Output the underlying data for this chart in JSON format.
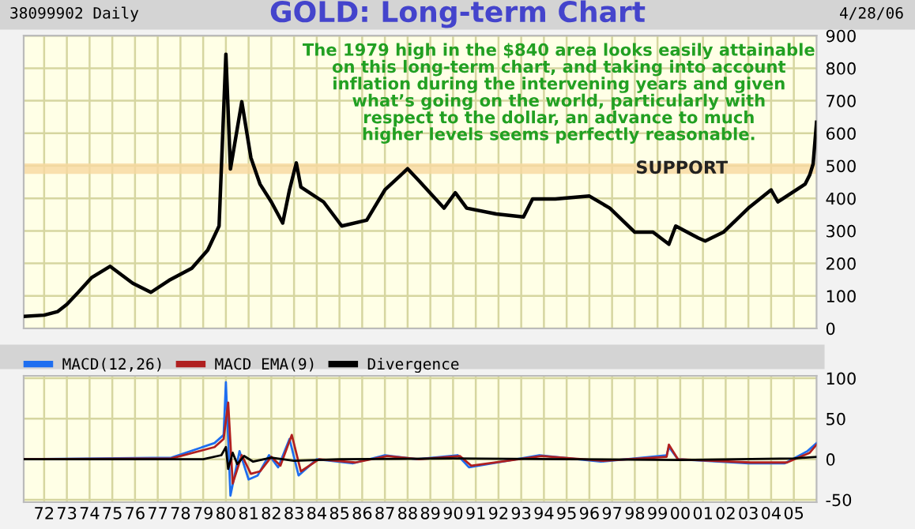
{
  "chart_data": [
    {
      "type": "line",
      "title": "GOLD: Long-term Chart",
      "annotations": [
        "38099902 Daily",
        "4/28/06",
        "The 1979 high in the $840 area looks easily attainable\non this long-term chart, and taking into account\ninflation during the intervening years and given\nwhat’s going on the world, particularly with\nrespect to the dollar, an advance to much\nhigher levels seems perfectly reasonable."
      ],
      "series": [
        {
          "color": "#000000",
          "x": [
            1971.1,
            1972.0,
            1972.6,
            1973.0,
            1973.5,
            1974.1,
            1974.9,
            1975.9,
            1976.7,
            1977.5,
            1978.5,
            1979.2,
            1979.7,
            1980.0,
            1980.2,
            1980.7,
            1981.1,
            1981.5,
            1982.0,
            1982.5,
            1982.8,
            1983.1,
            1983.3,
            1984.3,
            1985.1,
            1986.2,
            1987.0,
            1988.0,
            1988.5,
            1989.6,
            1990.1,
            1990.6,
            1991.9,
            1993.1,
            1993.5,
            1994.5,
            1996.0,
            1996.9,
            1998.0,
            1998.8,
            1999.5,
            1999.8,
            2000.8,
            2001.1,
            2001.9,
            2003.0,
            2004.0,
            2004.3,
            2005.5,
            2005.7,
            2005.85,
            2006.0
          ],
          "values": [
            37,
            41,
            52,
            74,
            111,
            157,
            191,
            139,
            111,
            148,
            185,
            241,
            315,
            843,
            490,
            697,
            525,
            444,
            389,
            324,
            426,
            509,
            435,
            389,
            315,
            333,
            426,
            491,
            454,
            370,
            417,
            370,
            352,
            343,
            398,
            398,
            407,
            370,
            296,
            296,
            259,
            315,
            278,
            269,
            296,
            370,
            426,
            389,
            444,
            472,
            506,
            634
          ]
        }
      ],
      "xlim": [
        1971.1,
        2006.0
      ],
      "xticks": [
        {
          "value": 1972,
          "label": null
        },
        {
          "value": 1973,
          "label": null
        },
        {
          "value": 1974,
          "label": null
        },
        {
          "value": 1975,
          "label": null
        },
        {
          "value": 1976,
          "label": null
        },
        {
          "value": 1977,
          "label": null
        },
        {
          "value": 1978,
          "label": null
        },
        {
          "value": 1979,
          "label": null
        },
        {
          "value": 1980,
          "label": null
        },
        {
          "value": 1981,
          "label": null
        },
        {
          "value": 1982,
          "label": null
        },
        {
          "value": 1983,
          "label": null
        },
        {
          "value": 1984,
          "label": null
        },
        {
          "value": 1985,
          "label": null
        },
        {
          "value": 1986,
          "label": null
        },
        {
          "value": 1987,
          "label": null
        },
        {
          "value": 1988,
          "label": null
        },
        {
          "value": 1989,
          "label": null
        },
        {
          "value": 1990,
          "label": null
        },
        {
          "value": 1991,
          "label": null
        },
        {
          "value": 1992,
          "label": null
        },
        {
          "value": 1993,
          "label": null
        },
        {
          "value": 1994,
          "label": null
        },
        {
          "value": 1995,
          "label": null
        },
        {
          "value": 1996,
          "label": null
        },
        {
          "value": 1997,
          "label": null
        },
        {
          "value": 1998,
          "label": null
        },
        {
          "value": 1999,
          "label": null
        },
        {
          "value": 2000,
          "label": null
        },
        {
          "value": 2001,
          "label": null
        },
        {
          "value": 2002,
          "label": null
        },
        {
          "value": 2003,
          "label": null
        },
        {
          "value": 2004,
          "label": null
        },
        {
          "value": 2005,
          "label": null
        }
      ],
      "ylim": [
        0,
        900
      ],
      "yticks": [
        0,
        100,
        200,
        300,
        400,
        500,
        600,
        700,
        800,
        900
      ],
      "bands": [
        {
          "axis": "y",
          "from": 475,
          "to": 507,
          "label": "SUPPORT",
          "color": "#f8d8a0"
        }
      ],
      "grid": true,
      "tick_labels": "y"
    },
    {
      "type": "line",
      "series": [
        {
          "name": "MACD(12,26)",
          "color": "#1e6ef0",
          "x": [
            1971.1,
            1977.6,
            1979.5,
            1979.9,
            1980.0,
            1980.2,
            1980.6,
            1981.0,
            1981.4,
            1981.9,
            1982.3,
            1982.8,
            1983.2,
            1984.0,
            1985.6,
            1987.0,
            1988.4,
            1990.2,
            1990.7,
            1993.8,
            1996.5,
            1999.4,
            1999.5,
            1999.9,
            2003.0,
            2004.6,
            2005.6,
            2006.0
          ],
          "values": [
            0,
            2,
            20,
            30,
            95,
            -45,
            10,
            -25,
            -20,
            5,
            -10,
            25,
            -20,
            0,
            -5,
            5,
            0,
            5,
            -10,
            5,
            -3,
            5,
            15,
            0,
            -5,
            -5,
            10,
            20
          ]
        },
        {
          "name": "MACD EMA(9)",
          "color": "#b02020",
          "x": [
            1971.1,
            1977.6,
            1979.5,
            1979.9,
            1980.1,
            1980.3,
            1980.7,
            1981.1,
            1981.5,
            1982.0,
            1982.4,
            1982.9,
            1983.3,
            1984.1,
            1985.7,
            1987.1,
            1988.5,
            1990.3,
            1990.8,
            1993.9,
            1996.6,
            1999.4,
            1999.5,
            1999.9,
            2003.1,
            2004.7,
            2005.7,
            2006.0
          ],
          "values": [
            0,
            1,
            15,
            25,
            70,
            -30,
            5,
            -18,
            -15,
            3,
            -8,
            30,
            -15,
            0,
            -4,
            4,
            0,
            4,
            -8,
            4,
            -2,
            3,
            18,
            0,
            -4,
            -4,
            8,
            18
          ]
        },
        {
          "name": "Divergence",
          "color": "#000000",
          "x": [
            1971.1,
            1979.0,
            1979.8,
            1980.0,
            1980.1,
            1980.3,
            1980.5,
            1980.8,
            1981.2,
            1982.0,
            1983.0,
            1985.0,
            1990.0,
            1995.0,
            2000.0,
            2005.0,
            2006.0
          ],
          "values": [
            0,
            0,
            5,
            15,
            -12,
            8,
            -6,
            4,
            -3,
            2,
            -2,
            0,
            1,
            0,
            -1,
            1,
            3
          ]
        }
      ],
      "xlim": [
        1971.1,
        2006.0
      ],
      "xticks": [
        {
          "value": 1972,
          "label": "72"
        },
        {
          "value": 1973,
          "label": "73"
        },
        {
          "value": 1974,
          "label": "74"
        },
        {
          "value": 1975,
          "label": "75"
        },
        {
          "value": 1976,
          "label": "76"
        },
        {
          "value": 1977,
          "label": "77"
        },
        {
          "value": 1978,
          "label": "78"
        },
        {
          "value": 1979,
          "label": "79"
        },
        {
          "value": 1980,
          "label": "80"
        },
        {
          "value": 1981,
          "label": "81"
        },
        {
          "value": 1982,
          "label": "82"
        },
        {
          "value": 1983,
          "label": "83"
        },
        {
          "value": 1984,
          "label": "84"
        },
        {
          "value": 1985,
          "label": "85"
        },
        {
          "value": 1986,
          "label": "86"
        },
        {
          "value": 1987,
          "label": "87"
        },
        {
          "value": 1988,
          "label": "88"
        },
        {
          "value": 1989,
          "label": "89"
        },
        {
          "value": 1990,
          "label": "90"
        },
        {
          "value": 1991,
          "label": "91"
        },
        {
          "value": 1992,
          "label": "92"
        },
        {
          "value": 1993,
          "label": "93"
        },
        {
          "value": 1994,
          "label": "94"
        },
        {
          "value": 1995,
          "label": "95"
        },
        {
          "value": 1996,
          "label": "96"
        },
        {
          "value": 1997,
          "label": "97"
        },
        {
          "value": 1998,
          "label": "98"
        },
        {
          "value": 1999,
          "label": "99"
        },
        {
          "value": 2000,
          "label": "00"
        },
        {
          "value": 2001,
          "label": "01"
        },
        {
          "value": 2002,
          "label": "02"
        },
        {
          "value": 2003,
          "label": "03"
        },
        {
          "value": 2004,
          "label": "04"
        },
        {
          "value": 2005,
          "label": "05"
        }
      ],
      "ylim": [
        -53,
        103
      ],
      "yticks": [
        -50,
        0,
        50,
        100
      ],
      "grid": true,
      "legend": "top left"
    }
  ]
}
